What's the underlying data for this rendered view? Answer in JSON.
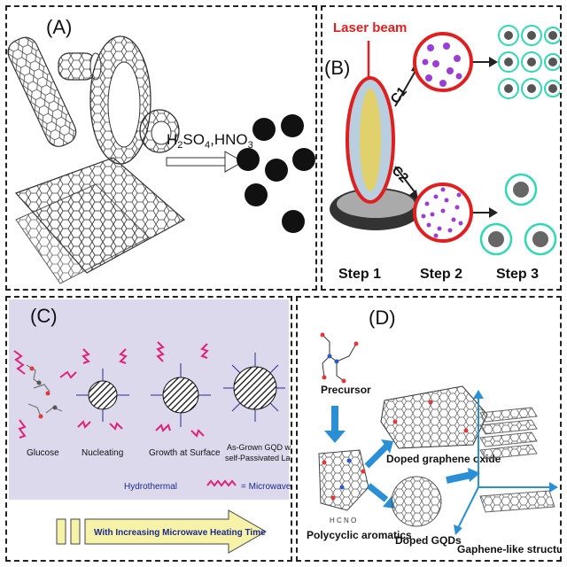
{
  "panels": {
    "a": {
      "label": "(A)",
      "reagents_main": "H",
      "sub1": "2",
      "reagents_mid": "SO",
      "sub2": "4",
      "reagents_tail": ",HNO",
      "sub3": "3"
    },
    "b": {
      "label": "(B)",
      "laser": "Laser beam",
      "route1": "C1",
      "route2": "C2",
      "step1": "Step 1",
      "step2": "Step 2",
      "step3": "Step 3"
    },
    "c": {
      "label": "(C)",
      "stage1": "Glucose",
      "stage2": "Nucleating",
      "stage3": "Growth at Surface",
      "stage4_line1": "As-Grown GQD with",
      "stage4_line2": "self-Passivated Layer",
      "hydrothermal": "Hydrothermal",
      "microwave_legend": "= Microwave",
      "arrow_text": "With Increasing Microwave Heating Time"
    },
    "d": {
      "label": "(D)",
      "precursor": "Precursor",
      "elements": "H C N O",
      "polycyclic": "Polycyclic aromatics",
      "doped_oxide": "Doped graphene oxide",
      "doped_gqds": "Doped  GQDs",
      "graphene_like": "Gaphene-like  structures"
    }
  },
  "colors": {
    "laser_red": "#e02020",
    "purple_dot": "#9a3fd6",
    "teal_ligand": "#2fd9b0",
    "panel_c_bg": "#dcd9ec",
    "microwave_pink": "#e0227a",
    "navy_text": "#1d2a8c",
    "arrow_yellow": "#f6f3a8",
    "arrow_blue": "#2b8fd6"
  }
}
